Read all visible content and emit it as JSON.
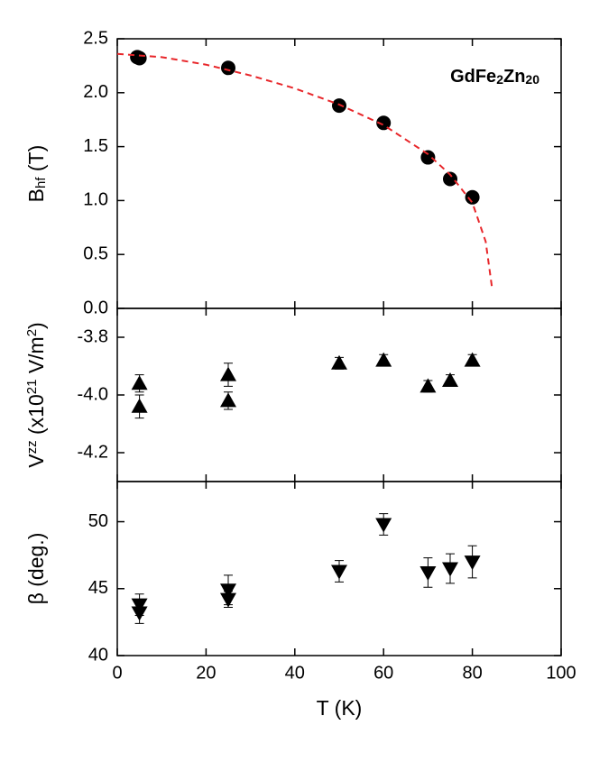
{
  "chart_data": [
    {
      "type": "scatter",
      "ylabel_parts": [
        "B",
        "hf",
        " (T)"
      ],
      "annotation_parts": [
        "GdFe",
        "2",
        "Zn",
        "20"
      ],
      "xlim": [
        0,
        100
      ],
      "xticks": [
        0,
        20,
        40,
        60,
        80,
        100
      ],
      "ylim": [
        0,
        2.5
      ],
      "yticks": [
        {
          "value": 0,
          "label": "0.0"
        },
        0.5,
        {
          "value": 1,
          "label": "1.0"
        },
        1.5,
        {
          "value": 2,
          "label": "2.0"
        },
        2.5
      ],
      "series": [
        {
          "marker": "circle",
          "color": "#000000",
          "x": [
            4.5,
            5,
            25,
            50,
            60,
            70,
            75,
            80
          ],
          "values": [
            2.33,
            2.32,
            2.23,
            1.88,
            1.72,
            1.4,
            1.2,
            1.03
          ]
        },
        {
          "marker": "dashed-line",
          "color": "#e8262a",
          "x": [
            0,
            10,
            20,
            30,
            40,
            50,
            60,
            70,
            75,
            80,
            83,
            84.5
          ],
          "values": [
            2.36,
            2.33,
            2.26,
            2.16,
            2.04,
            1.89,
            1.7,
            1.43,
            1.24,
            0.98,
            0.62,
            0.17
          ]
        }
      ]
    },
    {
      "type": "scatter",
      "ylabel_parts": [
        "V",
        "zz",
        " (x10",
        "21",
        " V/m",
        "2",
        ")"
      ],
      "xlim": [
        0,
        100
      ],
      "xticks": [
        0,
        20,
        40,
        60,
        80,
        100
      ],
      "ylim": [
        -4.3,
        -3.7
      ],
      "yticks": [
        -4.2,
        {
          "value": -4,
          "label": "-4.0"
        },
        -3.8
      ],
      "series": [
        {
          "marker": "triangle-up",
          "color": "#000000",
          "x": [
            5,
            5,
            25,
            25,
            50,
            60,
            70,
            75,
            80
          ],
          "values": [
            -3.96,
            -4.04,
            -3.93,
            -4.02,
            -3.89,
            -3.88,
            -3.97,
            -3.95,
            -3.88
          ],
          "errors": [
            0.03,
            0.04,
            0.04,
            0.03,
            0.02,
            0.02,
            0.02,
            0.02,
            0.02
          ]
        }
      ]
    },
    {
      "type": "scatter",
      "ylabel": "β (deg.)",
      "xlabel": "T (K)",
      "xlim": [
        0,
        100
      ],
      "xticks": [
        0,
        20,
        40,
        60,
        80,
        100
      ],
      "ylim": [
        40,
        53
      ],
      "yticks": [
        40,
        45,
        50
      ],
      "series": [
        {
          "marker": "triangle-down",
          "color": "#000000",
          "x": [
            5,
            5,
            25,
            25,
            50,
            60,
            70,
            75,
            80
          ],
          "values": [
            43.8,
            43.2,
            44.9,
            44.2,
            46.3,
            49.8,
            46.2,
            46.5,
            47.0
          ],
          "errors": [
            0.8,
            0.8,
            1.1,
            0.6,
            0.8,
            0.8,
            1.1,
            1.1,
            1.2
          ]
        }
      ]
    }
  ]
}
